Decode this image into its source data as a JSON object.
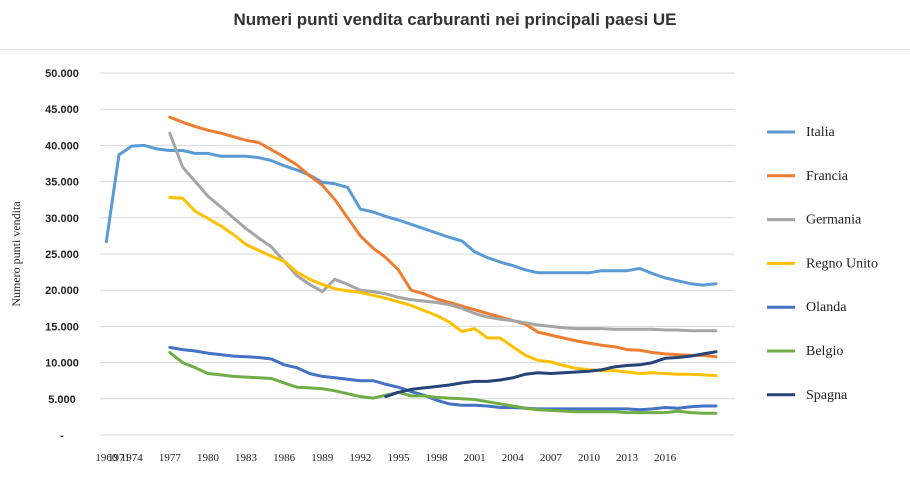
{
  "chart_data": {
    "type": "line",
    "title": "Numeri punti vendita carburanti nei principali paesi UE",
    "xlabel": "",
    "ylabel": "Numero punti vendita",
    "ylim": [
      0,
      50000
    ],
    "yticks": [
      0,
      5000,
      10000,
      15000,
      20000,
      25000,
      30000,
      35000,
      40000,
      45000,
      50000
    ],
    "ytick_labels": [
      "-",
      "5.000",
      "10.000",
      "15.000",
      "20.000",
      "25.000",
      "30.000",
      "35.000",
      "40.000",
      "45.000",
      "50.000"
    ],
    "xticks": [
      1960,
      1971,
      1974,
      1977,
      1980,
      1983,
      1986,
      1989,
      1992,
      1995,
      1998,
      2001,
      2004,
      2007,
      2010,
      2013,
      2016
    ],
    "grid": true,
    "legend": "right",
    "series": [
      {
        "name": "Italia",
        "color": "#5b9bd5",
        "points": [
          [
            0,
            26700
          ],
          [
            1,
            38700
          ],
          [
            2,
            39900
          ],
          [
            3,
            40000
          ],
          [
            4,
            39500
          ],
          [
            5,
            39300
          ],
          [
            6,
            39300
          ],
          [
            7,
            38900
          ],
          [
            8,
            38900
          ],
          [
            9,
            38500
          ],
          [
            10,
            38500
          ],
          [
            11,
            38500
          ],
          [
            12,
            38300
          ],
          [
            13,
            37900
          ],
          [
            14,
            37200
          ],
          [
            15,
            36600
          ],
          [
            16,
            35900
          ],
          [
            17,
            34900
          ],
          [
            18,
            34700
          ],
          [
            19,
            34200
          ],
          [
            20,
            31200
          ],
          [
            21,
            30800
          ],
          [
            22,
            30200
          ],
          [
            23,
            29700
          ],
          [
            24,
            29100
          ],
          [
            25,
            28500
          ],
          [
            26,
            27900
          ],
          [
            27,
            27300
          ],
          [
            28,
            26800
          ],
          [
            29,
            25300
          ],
          [
            30,
            24500
          ],
          [
            31,
            23900
          ],
          [
            32,
            23400
          ],
          [
            33,
            22800
          ],
          [
            34,
            22400
          ],
          [
            35,
            22400
          ],
          [
            36,
            22400
          ],
          [
            37,
            22400
          ],
          [
            38,
            22400
          ],
          [
            39,
            22700
          ],
          [
            40,
            22700
          ],
          [
            41,
            22700
          ],
          [
            42,
            23000
          ],
          [
            43,
            22300
          ],
          [
            44,
            21700
          ],
          [
            45,
            21300
          ],
          [
            46,
            20900
          ],
          [
            47,
            20700
          ],
          [
            48,
            20900
          ]
        ]
      },
      {
        "name": "Francia",
        "color": "#ed7d31",
        "points": [
          [
            5,
            43900
          ],
          [
            6,
            43200
          ],
          [
            7,
            42600
          ],
          [
            8,
            42100
          ],
          [
            9,
            41700
          ],
          [
            10,
            41200
          ],
          [
            11,
            40700
          ],
          [
            12,
            40400
          ],
          [
            13,
            39400
          ],
          [
            14,
            38400
          ],
          [
            15,
            37300
          ],
          [
            16,
            35800
          ],
          [
            17,
            34500
          ],
          [
            18,
            32500
          ],
          [
            19,
            30000
          ],
          [
            20,
            27500
          ],
          [
            21,
            25800
          ],
          [
            22,
            24500
          ],
          [
            23,
            22800
          ],
          [
            24,
            20000
          ],
          [
            25,
            19500
          ],
          [
            26,
            18800
          ],
          [
            27,
            18300
          ],
          [
            28,
            17800
          ],
          [
            29,
            17300
          ],
          [
            30,
            16800
          ],
          [
            31,
            16300
          ],
          [
            32,
            15800
          ],
          [
            33,
            15300
          ],
          [
            34,
            14200
          ],
          [
            35,
            13800
          ],
          [
            36,
            13400
          ],
          [
            37,
            13000
          ],
          [
            38,
            12700
          ],
          [
            39,
            12400
          ],
          [
            40,
            12200
          ],
          [
            41,
            11800
          ],
          [
            42,
            11700
          ],
          [
            43,
            11400
          ],
          [
            44,
            11200
          ],
          [
            45,
            11100
          ],
          [
            46,
            11000
          ],
          [
            47,
            11000
          ],
          [
            48,
            10800
          ]
        ]
      },
      {
        "name": "Germania",
        "color": "#a5a5a5",
        "points": [
          [
            5,
            41700
          ],
          [
            6,
            37000
          ],
          [
            7,
            35000
          ],
          [
            8,
            33000
          ],
          [
            9,
            31500
          ],
          [
            10,
            30000
          ],
          [
            11,
            28500
          ],
          [
            12,
            27200
          ],
          [
            13,
            26000
          ],
          [
            14,
            24000
          ],
          [
            15,
            22000
          ],
          [
            16,
            20800
          ],
          [
            17,
            19800
          ],
          [
            18,
            21500
          ],
          [
            19,
            20800
          ],
          [
            20,
            20000
          ],
          [
            21,
            19800
          ],
          [
            22,
            19500
          ],
          [
            23,
            19000
          ],
          [
            24,
            18700
          ],
          [
            25,
            18500
          ],
          [
            26,
            18300
          ],
          [
            27,
            18000
          ],
          [
            28,
            17500
          ],
          [
            29,
            16800
          ],
          [
            30,
            16300
          ],
          [
            31,
            16000
          ],
          [
            32,
            15800
          ],
          [
            33,
            15500
          ],
          [
            34,
            15200
          ],
          [
            35,
            15000
          ],
          [
            36,
            14800
          ],
          [
            37,
            14700
          ],
          [
            38,
            14700
          ],
          [
            39,
            14700
          ],
          [
            40,
            14600
          ],
          [
            41,
            14600
          ],
          [
            42,
            14600
          ],
          [
            43,
            14600
          ],
          [
            44,
            14500
          ],
          [
            45,
            14500
          ],
          [
            46,
            14400
          ],
          [
            47,
            14400
          ],
          [
            48,
            14400
          ]
        ]
      },
      {
        "name": "Regno Unito",
        "color": "#ffc000",
        "points": [
          [
            5,
            32800
          ],
          [
            6,
            32700
          ],
          [
            7,
            30900
          ],
          [
            8,
            29900
          ],
          [
            9,
            28900
          ],
          [
            10,
            27700
          ],
          [
            11,
            26300
          ],
          [
            12,
            25500
          ],
          [
            13,
            24700
          ],
          [
            14,
            24000
          ],
          [
            15,
            22500
          ],
          [
            16,
            21500
          ],
          [
            17,
            20800
          ],
          [
            18,
            20200
          ],
          [
            19,
            19900
          ],
          [
            20,
            19700
          ],
          [
            21,
            19300
          ],
          [
            22,
            18900
          ],
          [
            23,
            18400
          ],
          [
            24,
            17900
          ],
          [
            25,
            17200
          ],
          [
            26,
            16500
          ],
          [
            27,
            15600
          ],
          [
            28,
            14300
          ],
          [
            29,
            14700
          ],
          [
            30,
            13400
          ],
          [
            31,
            13400
          ],
          [
            32,
            12200
          ],
          [
            33,
            11000
          ],
          [
            34,
            10300
          ],
          [
            35,
            10100
          ],
          [
            36,
            9600
          ],
          [
            37,
            9200
          ],
          [
            38,
            9000
          ],
          [
            39,
            8900
          ],
          [
            40,
            8900
          ],
          [
            41,
            8700
          ],
          [
            42,
            8500
          ],
          [
            43,
            8600
          ],
          [
            44,
            8500
          ],
          [
            45,
            8400
          ],
          [
            46,
            8400
          ],
          [
            47,
            8300
          ],
          [
            48,
            8200
          ]
        ]
      },
      {
        "name": "Olanda",
        "color": "#4472c4",
        "points": [
          [
            5,
            12100
          ],
          [
            6,
            11800
          ],
          [
            7,
            11600
          ],
          [
            8,
            11300
          ],
          [
            9,
            11100
          ],
          [
            10,
            10900
          ],
          [
            11,
            10800
          ],
          [
            12,
            10700
          ],
          [
            13,
            10500
          ],
          [
            14,
            9700
          ],
          [
            15,
            9300
          ],
          [
            16,
            8500
          ],
          [
            17,
            8100
          ],
          [
            18,
            7900
          ],
          [
            19,
            7700
          ],
          [
            20,
            7500
          ],
          [
            21,
            7500
          ],
          [
            22,
            7000
          ],
          [
            23,
            6600
          ],
          [
            24,
            6000
          ],
          [
            25,
            5500
          ],
          [
            26,
            4800
          ],
          [
            27,
            4300
          ],
          [
            28,
            4100
          ],
          [
            29,
            4100
          ],
          [
            30,
            4000
          ],
          [
            31,
            3800
          ],
          [
            32,
            3800
          ],
          [
            33,
            3700
          ],
          [
            34,
            3600
          ],
          [
            35,
            3600
          ],
          [
            36,
            3600
          ],
          [
            37,
            3600
          ],
          [
            38,
            3600
          ],
          [
            39,
            3600
          ],
          [
            40,
            3600
          ],
          [
            41,
            3600
          ],
          [
            42,
            3500
          ],
          [
            43,
            3600
          ],
          [
            44,
            3800
          ],
          [
            45,
            3700
          ],
          [
            46,
            3900
          ],
          [
            47,
            4000
          ],
          [
            48,
            4000
          ]
        ]
      },
      {
        "name": "Belgio",
        "color": "#70ad47",
        "points": [
          [
            5,
            11400
          ],
          [
            6,
            10000
          ],
          [
            7,
            9300
          ],
          [
            8,
            8500
          ],
          [
            9,
            8300
          ],
          [
            10,
            8100
          ],
          [
            11,
            8000
          ],
          [
            12,
            7900
          ],
          [
            13,
            7800
          ],
          [
            14,
            7200
          ],
          [
            15,
            6600
          ],
          [
            16,
            6500
          ],
          [
            17,
            6400
          ],
          [
            18,
            6100
          ],
          [
            19,
            5700
          ],
          [
            20,
            5300
          ],
          [
            21,
            5100
          ],
          [
            22,
            5500
          ],
          [
            23,
            5900
          ],
          [
            24,
            5400
          ],
          [
            25,
            5400
          ],
          [
            26,
            5200
          ],
          [
            27,
            5100
          ],
          [
            28,
            5000
          ],
          [
            29,
            4900
          ],
          [
            30,
            4600
          ],
          [
            31,
            4300
          ],
          [
            32,
            4000
          ],
          [
            33,
            3700
          ],
          [
            34,
            3500
          ],
          [
            35,
            3400
          ],
          [
            36,
            3300
          ],
          [
            37,
            3200
          ],
          [
            38,
            3200
          ],
          [
            39,
            3200
          ],
          [
            40,
            3200
          ],
          [
            41,
            3100
          ],
          [
            42,
            3100
          ],
          [
            43,
            3100
          ],
          [
            44,
            3100
          ],
          [
            45,
            3300
          ],
          [
            46,
            3100
          ],
          [
            47,
            3000
          ],
          [
            48,
            3000
          ]
        ]
      },
      {
        "name": "Spagna",
        "color": "#264478",
        "points": [
          [
            22,
            5300
          ],
          [
            23,
            5900
          ],
          [
            24,
            6300
          ],
          [
            25,
            6500
          ],
          [
            26,
            6700
          ],
          [
            27,
            6900
          ],
          [
            28,
            7200
          ],
          [
            29,
            7400
          ],
          [
            30,
            7400
          ],
          [
            31,
            7600
          ],
          [
            32,
            7900
          ],
          [
            33,
            8400
          ],
          [
            34,
            8600
          ],
          [
            35,
            8500
          ],
          [
            36,
            8600
          ],
          [
            37,
            8700
          ],
          [
            38,
            8800
          ],
          [
            39,
            9000
          ],
          [
            40,
            9400
          ],
          [
            41,
            9600
          ],
          [
            42,
            9700
          ],
          [
            43,
            10000
          ],
          [
            44,
            10600
          ],
          [
            45,
            10700
          ],
          [
            46,
            10900
          ],
          [
            47,
            11200
          ],
          [
            48,
            11500
          ]
        ]
      }
    ]
  }
}
